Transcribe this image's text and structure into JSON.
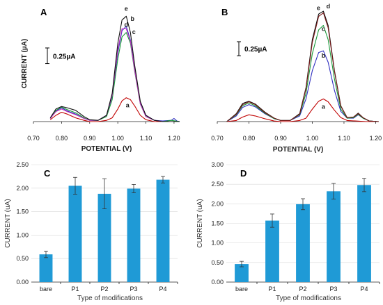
{
  "chart_data": [
    {
      "type": "line",
      "panel": "A",
      "xlabel": "POTENTIAL (V)",
      "ylabel": "CURRENT (µA)",
      "xlim": [
        0.7,
        1.22
      ],
      "x_ticks": [
        "0.70",
        "0.80",
        "0.90",
        "1.00",
        "1.10",
        "1.20"
      ],
      "scale_bar_label": "0.25µA",
      "scale_bar_value": 0.25,
      "ylim": [
        0,
        1.85
      ],
      "series": [
        {
          "label": "a",
          "color": "#c00000",
          "x": [
            0.76,
            0.78,
            0.8,
            0.82,
            0.85,
            0.88,
            0.9,
            0.93,
            0.96,
            0.98,
            1.0,
            1.015,
            1.03,
            1.045,
            1.06,
            1.08,
            1.1,
            1.13,
            1.16,
            1.2,
            1.22
          ],
          "y": [
            0.03,
            0.1,
            0.15,
            0.12,
            0.06,
            0.02,
            0.0,
            0.0,
            0.02,
            0.06,
            0.2,
            0.33,
            0.38,
            0.35,
            0.25,
            0.1,
            0.03,
            0.0,
            0.0,
            0.0,
            0.0
          ]
        },
        {
          "label": "b",
          "color": "#3030c0",
          "x": [
            0.76,
            0.78,
            0.8,
            0.82,
            0.85,
            0.88,
            0.9,
            0.93,
            0.96,
            0.98,
            1.0,
            1.015,
            1.03,
            1.045,
            1.06,
            1.08,
            1.1,
            1.13,
            1.16,
            1.19,
            1.2,
            1.21,
            1.22
          ],
          "y": [
            0.05,
            0.17,
            0.22,
            0.17,
            0.12,
            0.05,
            0.02,
            0.02,
            0.1,
            0.4,
            1.1,
            1.45,
            1.52,
            1.3,
            0.85,
            0.3,
            0.1,
            0.02,
            0.01,
            0.02,
            0.05,
            0.01,
            0.0
          ]
        },
        {
          "label": "c",
          "color": "#1a9a3a",
          "x": [
            0.76,
            0.78,
            0.8,
            0.82,
            0.85,
            0.88,
            0.9,
            0.93,
            0.96,
            0.98,
            1.0,
            1.015,
            1.03,
            1.045,
            1.06,
            1.08,
            1.1,
            1.13,
            1.16,
            1.19,
            1.22
          ],
          "y": [
            0.05,
            0.18,
            0.23,
            0.19,
            0.14,
            0.06,
            0.02,
            0.02,
            0.08,
            0.35,
            1.0,
            1.35,
            1.42,
            1.25,
            0.8,
            0.28,
            0.08,
            0.02,
            0.0,
            0.02,
            0.0
          ]
        },
        {
          "label": "d",
          "color": "#c030c0",
          "x": [
            0.76,
            0.78,
            0.8,
            0.82,
            0.85,
            0.88,
            0.9,
            0.93,
            0.96,
            0.98,
            1.0,
            1.015,
            1.03,
            1.045,
            1.06,
            1.08,
            1.1,
            1.13,
            1.16,
            1.2,
            1.22
          ],
          "y": [
            0.05,
            0.16,
            0.2,
            0.16,
            0.11,
            0.05,
            0.02,
            0.02,
            0.1,
            0.42,
            1.15,
            1.48,
            1.48,
            1.28,
            0.82,
            0.28,
            0.08,
            0.02,
            0.0,
            0.0,
            0.0
          ]
        },
        {
          "label": "e",
          "color": "#111111",
          "x": [
            0.76,
            0.78,
            0.8,
            0.82,
            0.85,
            0.88,
            0.9,
            0.93,
            0.96,
            0.98,
            1.0,
            1.015,
            1.03,
            1.045,
            1.06,
            1.08,
            1.1,
            1.13,
            1.16,
            1.2,
            1.22
          ],
          "y": [
            0.06,
            0.2,
            0.24,
            0.22,
            0.18,
            0.08,
            0.03,
            0.02,
            0.1,
            0.45,
            1.25,
            1.62,
            1.68,
            1.42,
            0.9,
            0.32,
            0.1,
            0.02,
            0.0,
            0.0,
            0.0
          ]
        }
      ]
    },
    {
      "type": "line",
      "panel": "B",
      "xlabel": "POTENTIAL (V)",
      "xlim": [
        0.7,
        1.21
      ],
      "x_ticks": [
        "0.70",
        "0.80",
        "0.90",
        "1.00",
        "1.10",
        "1.20"
      ],
      "scale_bar_label": "0.25µA",
      "scale_bar_value": 0.25,
      "ylim": [
        0,
        2.05
      ],
      "series": [
        {
          "label": "a",
          "color": "#c00000",
          "x": [
            0.73,
            0.76,
            0.78,
            0.8,
            0.82,
            0.85,
            0.88,
            0.9,
            0.93,
            0.96,
            0.98,
            1.0,
            1.02,
            1.035,
            1.05,
            1.07,
            1.09,
            1.11,
            1.14,
            1.17,
            1.21
          ],
          "y": [
            0.0,
            0.02,
            0.08,
            0.12,
            0.1,
            0.05,
            0.01,
            0.0,
            0.0,
            0.02,
            0.06,
            0.22,
            0.36,
            0.4,
            0.35,
            0.2,
            0.07,
            0.02,
            0.01,
            0.0,
            0.0
          ]
        },
        {
          "label": "b",
          "color": "#3030c0",
          "x": [
            0.73,
            0.76,
            0.78,
            0.8,
            0.82,
            0.85,
            0.88,
            0.9,
            0.93,
            0.96,
            0.98,
            1.0,
            1.02,
            1.035,
            1.05,
            1.07,
            1.09,
            1.11,
            1.13,
            1.145,
            1.16,
            1.18,
            1.21
          ],
          "y": [
            0.0,
            0.1,
            0.25,
            0.3,
            0.26,
            0.14,
            0.05,
            0.02,
            0.02,
            0.1,
            0.4,
            0.9,
            1.22,
            1.25,
            1.05,
            0.55,
            0.18,
            0.06,
            0.06,
            0.12,
            0.06,
            0.01,
            0.0
          ]
        },
        {
          "label": "c",
          "color": "#1a9a3a",
          "x": [
            0.73,
            0.76,
            0.78,
            0.8,
            0.82,
            0.85,
            0.88,
            0.9,
            0.93,
            0.96,
            0.98,
            1.0,
            1.02,
            1.035,
            1.05,
            1.07,
            1.09,
            1.11,
            1.13,
            1.145,
            1.16,
            1.18,
            1.21
          ],
          "y": [
            0.0,
            0.12,
            0.28,
            0.33,
            0.28,
            0.15,
            0.05,
            0.02,
            0.02,
            0.12,
            0.5,
            1.2,
            1.62,
            1.7,
            1.45,
            0.75,
            0.22,
            0.06,
            0.07,
            0.13,
            0.06,
            0.01,
            0.0
          ]
        },
        {
          "label": "d",
          "color": "#111111",
          "x": [
            0.73,
            0.76,
            0.78,
            0.8,
            0.82,
            0.85,
            0.88,
            0.9,
            0.93,
            0.96,
            0.98,
            1.0,
            1.02,
            1.035,
            1.05,
            1.07,
            1.09,
            1.11,
            1.13,
            1.145,
            1.16,
            1.18,
            1.21
          ],
          "y": [
            0.0,
            0.14,
            0.32,
            0.36,
            0.31,
            0.17,
            0.06,
            0.02,
            0.02,
            0.14,
            0.6,
            1.45,
            1.9,
            1.95,
            1.7,
            0.9,
            0.28,
            0.07,
            0.08,
            0.15,
            0.07,
            0.01,
            0.0
          ]
        },
        {
          "label": "e",
          "color": "#7a1a1a",
          "x": [
            0.73,
            0.76,
            0.78,
            0.8,
            0.82,
            0.85,
            0.88,
            0.9,
            0.93,
            0.96,
            0.98,
            1.0,
            1.02,
            1.035,
            1.05,
            1.07,
            1.09,
            1.11,
            1.13,
            1.145,
            1.16,
            1.18,
            1.21
          ],
          "y": [
            0.0,
            0.13,
            0.3,
            0.35,
            0.3,
            0.16,
            0.06,
            0.02,
            0.02,
            0.13,
            0.58,
            1.4,
            1.86,
            1.92,
            1.66,
            0.88,
            0.27,
            0.07,
            0.08,
            0.14,
            0.07,
            0.01,
            0.0
          ]
        }
      ]
    },
    {
      "type": "bar",
      "panel": "C",
      "xlabel": "Type of modifications",
      "ylabel": "CURRENT (uA)",
      "categories": [
        "bare",
        "P1",
        "P2",
        "P3",
        "P4"
      ],
      "values": [
        0.59,
        2.05,
        1.88,
        1.99,
        2.18
      ],
      "errors": [
        0.07,
        0.18,
        0.32,
        0.09,
        0.07
      ],
      "ylim": [
        0,
        2.5
      ],
      "y_ticks": [
        "0.00",
        "0.50",
        "1.00",
        "1.50",
        "2.00",
        "2.50"
      ],
      "y_tick_values": [
        0,
        0.5,
        1.0,
        1.5,
        2.0,
        2.5
      ],
      "bar_color": "#1f9ad6",
      "grid": true
    },
    {
      "type": "bar",
      "panel": "D",
      "xlabel": "Type of modifications",
      "ylabel": "CURRENT (uA)",
      "categories": [
        "bare",
        "P1",
        "P2",
        "P3",
        "P4"
      ],
      "values": [
        0.46,
        1.57,
        1.99,
        2.32,
        2.48
      ],
      "errors": [
        0.07,
        0.17,
        0.14,
        0.2,
        0.17
      ],
      "ylim": [
        0,
        3.0
      ],
      "y_ticks": [
        "0.00",
        "0.50",
        "1.00",
        "1.50",
        "2.00",
        "2.50",
        "3.00"
      ],
      "y_tick_values": [
        0,
        0.5,
        1.0,
        1.5,
        2.0,
        2.5,
        3.0
      ],
      "bar_color": "#1f9ad6",
      "grid": true
    }
  ]
}
